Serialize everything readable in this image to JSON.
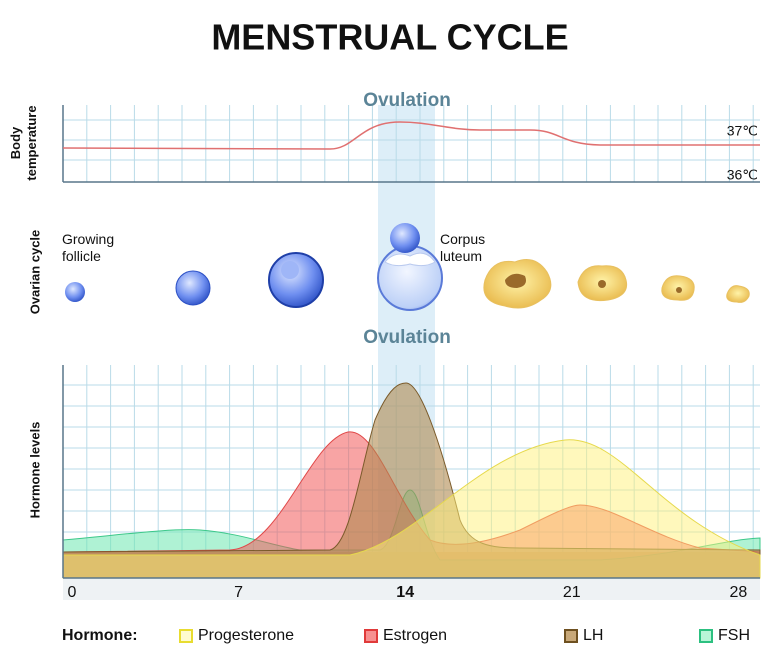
{
  "title": "MENSTRUAL CYCLE",
  "temperature_panel": {
    "ovulation_label": "Ovulation",
    "y_label": [
      "Body",
      "temperature"
    ],
    "temp_labels": [
      "37℃",
      "36℃"
    ]
  },
  "ovarian_panel": {
    "y_label": "Ovarian cycle",
    "growing_label": [
      "Growing",
      "follicle"
    ],
    "corpus_label": [
      "Corpus",
      "luteum"
    ]
  },
  "hormone_panel": {
    "ovulation_label": "Ovulation",
    "y_label": "Hormone levels",
    "x_labels": [
      "0",
      "7",
      "14",
      "21",
      "28"
    ]
  },
  "legend": {
    "title": "Hormone:",
    "items": [
      "Progesterone",
      "Estrogen",
      "LH",
      "FSH"
    ]
  }
}
